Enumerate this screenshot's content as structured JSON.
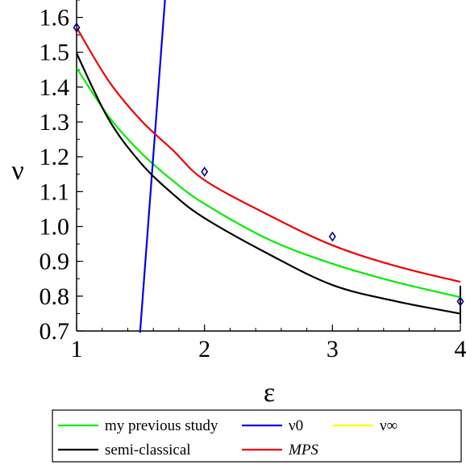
{
  "chart_data": {
    "type": "line",
    "xlabel": "ε",
    "ylabel": "ν",
    "xlim": [
      1,
      4
    ],
    "ylim": [
      0.7,
      1.65
    ],
    "x_ticks": [
      1,
      2,
      3,
      4
    ],
    "x_tick_labels": [
      "1",
      "2",
      "3",
      "4"
    ],
    "y_ticks": [
      0.7,
      0.8,
      0.9,
      1.0,
      1.1,
      1.2,
      1.3,
      1.4,
      1.5,
      1.6
    ],
    "y_tick_labels": [
      "0.7",
      "0.8",
      "0.9",
      "1.0",
      "1.1",
      "1.2",
      "1.3",
      "1.4",
      "1.5",
      "1.6"
    ],
    "grid": false,
    "legend_position": "bottom",
    "series": [
      {
        "name": "my previous study",
        "color": "#00ee00",
        "x": [
          1.0,
          1.25,
          1.5,
          1.75,
          2.0,
          2.5,
          3.0,
          3.5,
          4.0
        ],
        "y": [
          1.455,
          1.316,
          1.213,
          1.132,
          1.065,
          0.963,
          0.893,
          0.84,
          0.797
        ]
      },
      {
        "name": "ν0",
        "color": "#0000ee",
        "x": [
          1.495,
          1.695
        ],
        "y": [
          0.69,
          1.67
        ]
      },
      {
        "name": "ν∞",
        "color": "#ffff00",
        "x": [],
        "y": []
      },
      {
        "name": "semi-classical",
        "color": "#000000",
        "x": [
          1.0,
          1.25,
          1.5,
          1.75,
          2.0,
          2.5,
          3.0,
          3.5,
          4.0
        ],
        "y": [
          1.497,
          1.308,
          1.183,
          1.094,
          1.024,
          0.921,
          0.832,
          0.785,
          0.75
        ]
      },
      {
        "name": "MPS",
        "color": "#ee0000",
        "x": [
          1.0,
          1.25,
          1.5,
          1.75,
          2.0,
          2.5,
          3.0,
          3.5,
          4.0
        ],
        "y": [
          1.571,
          1.418,
          1.306,
          1.22,
          1.133,
          1.033,
          0.946,
          0.886,
          0.841
        ]
      }
    ],
    "points": [
      {
        "x": 1.0,
        "y": 1.571
      },
      {
        "x": 2.0,
        "y": 1.157
      },
      {
        "x": 3.0,
        "y": 0.971
      },
      {
        "x": 4.0,
        "y": 0.785
      }
    ],
    "point_color": "#000080",
    "legend": {
      "rows": [
        [
          "my previous study",
          "ν0",
          "ν∞"
        ],
        [
          "semi-classical",
          "MPS"
        ]
      ]
    }
  }
}
